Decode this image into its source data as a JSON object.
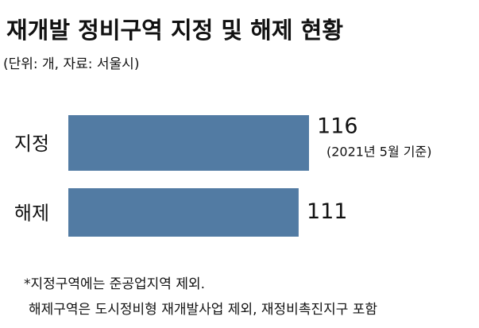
{
  "chart_data": {
    "type": "bar",
    "orientation": "horizontal",
    "title": "재개발 정비구역 지정 및 해제 현황",
    "subtitle": "(단위: 개, 자료: 서울시)",
    "categories": [
      "지정",
      "해제"
    ],
    "values": [
      116,
      111
    ],
    "color": "#527ba3",
    "xlim": [
      0,
      116
    ],
    "annotation": "(2021년 5월 기준)",
    "notes": [
      "*지정구역에는 준공업지역 제외.",
      "해제구역은 도시정비형 재개발사업 제외, 재정비촉진지구 포함"
    ]
  }
}
